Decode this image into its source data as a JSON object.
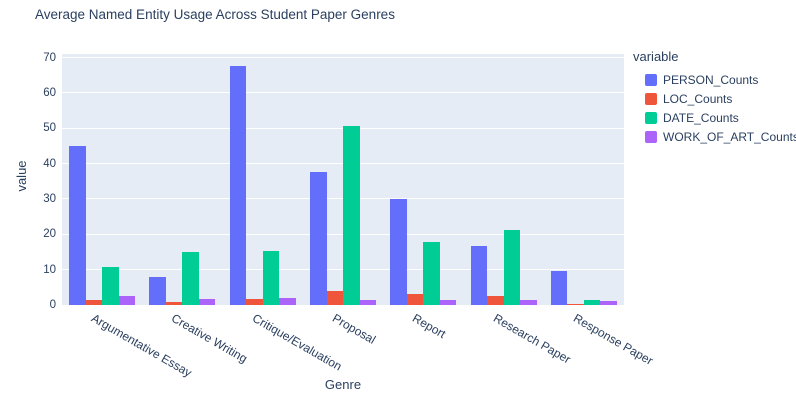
{
  "chart_data": {
    "type": "bar",
    "title": "Average Named Entity Usage Across Student Paper Genres",
    "xlabel": "Genre",
    "ylabel": "value",
    "legend_title": "variable",
    "legend_position": "right",
    "grid": true,
    "plot_bg_color": "#E5ECF6",
    "grid_color": "#FFFFFF",
    "text_color": "#2A3F5F",
    "ylim": [
      0,
      71
    ],
    "yticks": [
      0,
      10,
      20,
      30,
      40,
      50,
      60,
      70
    ],
    "categories": [
      "Argumentative Essay",
      "Creative Writing",
      "Critique/Evaluation",
      "Proposal",
      "Report",
      "Research Paper",
      "Response Paper"
    ],
    "series": [
      {
        "name": "PERSON_Counts",
        "color": "#636EFA",
        "values": [
          45,
          8,
          67.5,
          37.5,
          30,
          16.8,
          9.5
        ]
      },
      {
        "name": "LOC_Counts",
        "color": "#EF553B",
        "values": [
          1.5,
          0.9,
          1.7,
          4,
          3,
          2.6,
          0.2
        ]
      },
      {
        "name": "DATE_Counts",
        "color": "#00CC96",
        "values": [
          10.7,
          15,
          15.3,
          50.5,
          17.8,
          21.3,
          1.3
        ]
      },
      {
        "name": "WORK_OF_ART_Counts",
        "color": "#AB63FA",
        "values": [
          2.5,
          1.7,
          1.9,
          1.3,
          1.4,
          1.3,
          1
        ]
      }
    ]
  }
}
